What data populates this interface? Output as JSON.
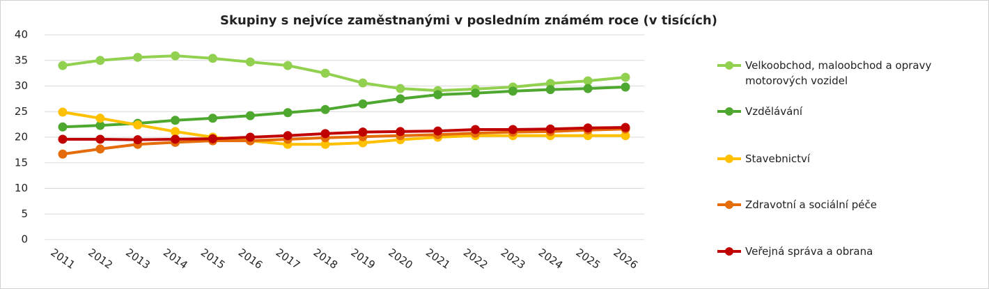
{
  "chart_data": {
    "type": "line",
    "title": "Skupiny s nejvíce zaměstnanými v posledním známém roce (v tisících)",
    "categories": [
      "2011",
      "2012",
      "2013",
      "2014",
      "2015",
      "2016",
      "2017",
      "2018",
      "2019",
      "2020",
      "2021",
      "2022",
      "2023",
      "2024",
      "2025",
      "2026"
    ],
    "series": [
      {
        "name": "Velkoobchod, maloobchod a opravy motorových vozidel",
        "color": "#92d050",
        "values": [
          34.0,
          35.0,
          35.6,
          35.9,
          35.4,
          34.7,
          34.0,
          32.5,
          30.6,
          29.5,
          29.1,
          29.4,
          29.8,
          30.5,
          31.0,
          31.7
        ]
      },
      {
        "name": "Vzdělávání",
        "color": "#4ea72e",
        "values": [
          22.0,
          22.3,
          22.7,
          23.3,
          23.7,
          24.2,
          24.8,
          25.4,
          26.5,
          27.5,
          28.3,
          28.6,
          29.0,
          29.3,
          29.5,
          29.8
        ]
      },
      {
        "name": "Stavebnictví",
        "color": "#ffc000",
        "values": [
          24.9,
          23.7,
          22.4,
          21.1,
          20.0,
          19.3,
          18.6,
          18.6,
          18.9,
          19.5,
          20.0,
          20.3,
          20.3,
          20.3,
          20.3,
          20.3
        ]
      },
      {
        "name": "Zdravotní a sociální péče",
        "color": "#e46c0a",
        "values": [
          16.7,
          17.7,
          18.6,
          19.0,
          19.3,
          19.3,
          19.6,
          19.9,
          20.1,
          20.3,
          20.5,
          20.8,
          21.0,
          21.1,
          21.4,
          21.6
        ]
      },
      {
        "name": "Veřejná správa a obrana",
        "color": "#c00000",
        "values": [
          19.6,
          19.6,
          19.5,
          19.6,
          19.7,
          20.0,
          20.3,
          20.7,
          21.0,
          21.1,
          21.2,
          21.5,
          21.5,
          21.6,
          21.8,
          21.9
        ]
      }
    ],
    "ylim": [
      0,
      40
    ],
    "yticks": [
      0,
      5,
      10,
      15,
      20,
      25,
      30,
      35,
      40
    ],
    "grid": true,
    "legend": "right"
  }
}
